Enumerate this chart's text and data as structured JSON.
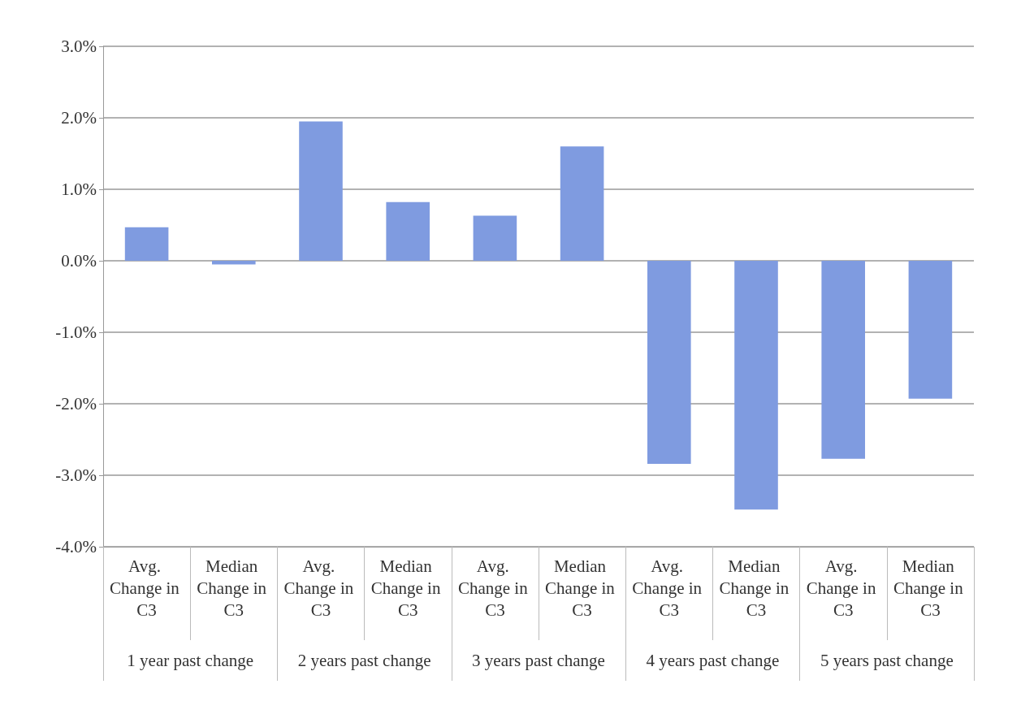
{
  "chart_data": {
    "type": "bar",
    "categories": [
      "Avg. Change in C3",
      "Median Change in C3",
      "Avg. Change in C3",
      "Median Change in C3",
      "Avg. Change in C3",
      "Median Change in C3",
      "Avg. Change in C3",
      "Median Change in C3",
      "Avg. Change in C3",
      "Median Change in C3"
    ],
    "values": [
      0.47,
      -0.05,
      1.95,
      0.82,
      0.63,
      1.6,
      -2.84,
      -3.48,
      -2.77,
      -1.93
    ],
    "color": "#7f9be0",
    "annotations": [
      "1 year past change",
      "2 years past change",
      "3 years past change",
      "4 years past change",
      "5 years past change"
    ],
    "ylim": [
      -4,
      3
    ],
    "yticks": [
      {
        "value": -4,
        "label": "-4.0%"
      },
      {
        "value": -3,
        "label": "-3.0%"
      },
      {
        "value": -2,
        "label": "-2.0%"
      },
      {
        "value": -1,
        "label": "-1.0%"
      },
      {
        "value": 0,
        "label": "0.0%"
      },
      {
        "value": 1,
        "label": "1.0%"
      },
      {
        "value": 2,
        "label": "2.0%"
      },
      {
        "value": 3,
        "label": "3.0%"
      }
    ],
    "grid": "y"
  }
}
